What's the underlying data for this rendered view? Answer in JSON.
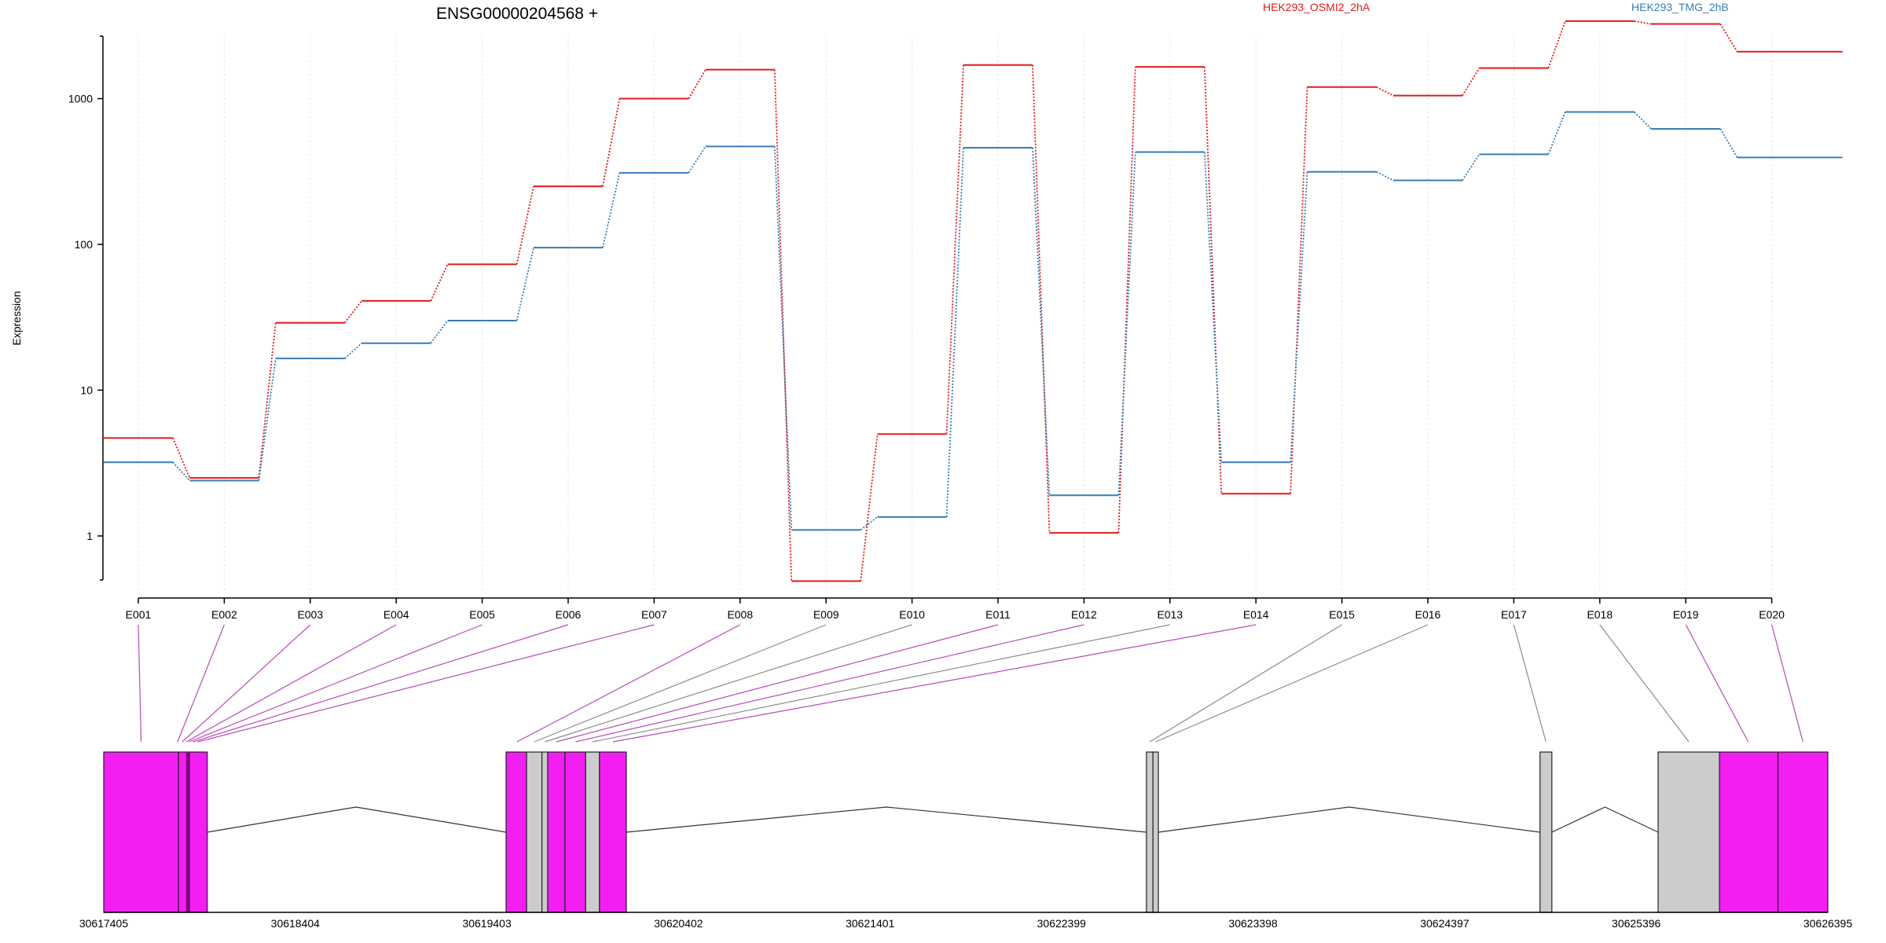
{
  "chart_data": {
    "type": "line",
    "title": "ENSG00000204568 +",
    "ylabel": "Expression",
    "yscale": "log",
    "ylim": [
      0.35,
      4500
    ],
    "yticks": [
      1,
      10,
      100,
      1000
    ],
    "ytick_labels": [
      "1",
      "10",
      "100",
      "1000"
    ],
    "categories": [
      "E001",
      "E002",
      "E003",
      "E004",
      "E005",
      "E006",
      "E007",
      "E008",
      "E009",
      "E010",
      "E011",
      "E012",
      "E013",
      "E014",
      "E015",
      "E016",
      "E017",
      "E018",
      "E019",
      "E020"
    ],
    "legend_placement": "top",
    "series": [
      {
        "name": "HEK293_OSMI2_2hA",
        "color": "#e41a1c",
        "values": [
          4.7,
          2.5,
          29,
          41,
          73,
          250,
          1000,
          1580,
          0.49,
          5.0,
          1700,
          1.05,
          1650,
          1.95,
          1200,
          1050,
          1620,
          3400,
          3250,
          2100
        ]
      },
      {
        "name": "HEK293_TMG_2hB",
        "color": "#377eb8",
        "values": [
          3.2,
          2.4,
          16.5,
          21,
          30,
          95,
          310,
          470,
          1.1,
          1.35,
          460,
          1.9,
          430,
          3.2,
          315,
          275,
          415,
          810,
          620,
          395
        ]
      }
    ],
    "gene_model": {
      "coord_ticks": [
        "30617405",
        "30618404",
        "30619403",
        "30620402",
        "30621401",
        "30622399",
        "30623398",
        "30624397",
        "30625396",
        "30626395"
      ],
      "coord_range": [
        30617405,
        30626395
      ],
      "feature_colors": {
        "tested": "#f21ef2",
        "untested": "#cccccc"
      },
      "exon_blocks": [
        {
          "start": 30617405,
          "end": 30617795,
          "tested": true
        },
        {
          "start": 30617795,
          "end": 30617850,
          "tested": true
        },
        {
          "start": 30617850,
          "end": 30617945,
          "tested": true
        },
        {
          "start": 30619503,
          "end": 30619610,
          "tested": true
        },
        {
          "start": 30619610,
          "end": 30619690,
          "tested": false
        },
        {
          "start": 30619690,
          "end": 30619720,
          "tested": false
        },
        {
          "start": 30619720,
          "end": 30619810,
          "tested": true
        },
        {
          "start": 30619810,
          "end": 30619918,
          "tested": true
        },
        {
          "start": 30619918,
          "end": 30619990,
          "tested": false
        },
        {
          "start": 30619990,
          "end": 30620130,
          "tested": true
        },
        {
          "start": 30622842,
          "end": 30622876,
          "tested": false
        },
        {
          "start": 30622876,
          "end": 30622904,
          "tested": false
        },
        {
          "start": 30624894,
          "end": 30624956,
          "tested": false
        },
        {
          "start": 30625510,
          "end": 30625830,
          "tested": false
        },
        {
          "start": 30625830,
          "end": 30626135,
          "tested": true
        },
        {
          "start": 30626135,
          "end": 30626395,
          "tested": true
        }
      ],
      "introns": [
        {
          "start": 30617945,
          "end": 30619503,
          "peak": 30618720
        },
        {
          "start": 30620130,
          "end": 30622842,
          "peak": 30621486
        },
        {
          "start": 30622904,
          "end": 30624894,
          "peak": 30623899
        },
        {
          "start": 30624956,
          "end": 30625510,
          "peak": 30625233
        }
      ],
      "exon_connectors": [
        {
          "exon": "E001",
          "pos": 30617600,
          "tested": true
        },
        {
          "exon": "E002",
          "pos": 30617790,
          "tested": true
        },
        {
          "exon": "E003",
          "pos": 30617815,
          "tested": true
        },
        {
          "exon": "E004",
          "pos": 30617835,
          "tested": true
        },
        {
          "exon": "E005",
          "pos": 30617850,
          "tested": true
        },
        {
          "exon": "E006",
          "pos": 30617870,
          "tested": true
        },
        {
          "exon": "E007",
          "pos": 30617895,
          "tested": true
        },
        {
          "exon": "E008",
          "pos": 30619560,
          "tested": true
        },
        {
          "exon": "E009",
          "pos": 30619650,
          "tested": false
        },
        {
          "exon": "E010",
          "pos": 30619705,
          "tested": false
        },
        {
          "exon": "E011",
          "pos": 30619765,
          "tested": true
        },
        {
          "exon": "E012",
          "pos": 30619865,
          "tested": true
        },
        {
          "exon": "E013",
          "pos": 30619955,
          "tested": false
        },
        {
          "exon": "E014",
          "pos": 30620060,
          "tested": true
        },
        {
          "exon": "E015",
          "pos": 30622859,
          "tested": false
        },
        {
          "exon": "E016",
          "pos": 30622890,
          "tested": false
        },
        {
          "exon": "E017",
          "pos": 30624925,
          "tested": false
        },
        {
          "exon": "E018",
          "pos": 30625670,
          "tested": false
        },
        {
          "exon": "E019",
          "pos": 30625980,
          "tested": true
        },
        {
          "exon": "E020",
          "pos": 30626265,
          "tested": true
        }
      ]
    }
  }
}
